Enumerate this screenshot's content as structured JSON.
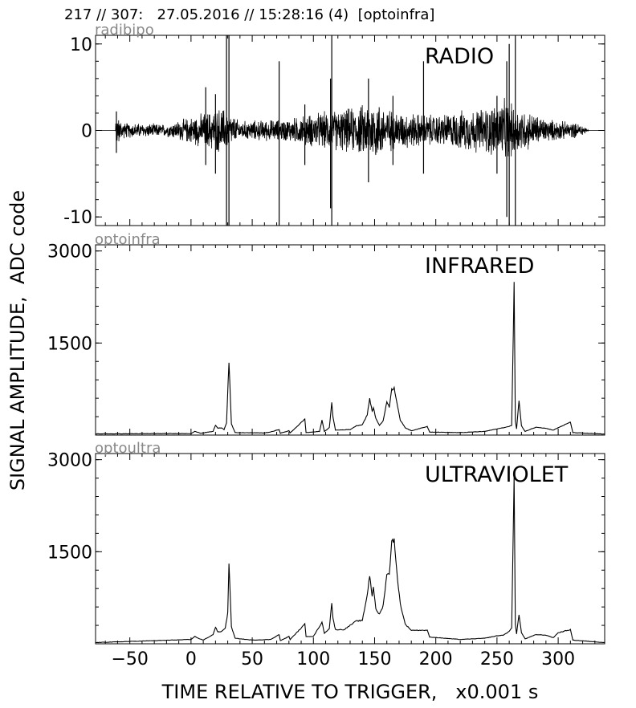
{
  "header": "217 // 307:   27.05.2016 // 15:28:16 (4)  [optoinfra]",
  "ylabel": "SIGNAL AMPLITUDE,  ADC code",
  "xlabel": "TIME RELATIVE TO TRIGGER,   x0.001 s",
  "chart_data": [
    {
      "type": "line",
      "channel": "radibipo",
      "title": "RADIO",
      "xlim": [
        -78,
        338
      ],
      "ylim": [
        -11,
        11
      ],
      "yticks": [
        10,
        0,
        -10
      ],
      "ytick_labels": [
        "10",
        "0",
        "-10"
      ],
      "x_ticks_labeled": false,
      "baseline": 0,
      "noise_envelope": [
        {
          "x": -78,
          "amp": 0
        },
        {
          "x": -62,
          "amp": 0
        },
        {
          "x": -61,
          "amp": 2.0
        },
        {
          "x": -55,
          "amp": 1.0
        },
        {
          "x": -20,
          "amp": 0.8
        },
        {
          "x": 15,
          "amp": 2.5
        },
        {
          "x": 25,
          "amp": 3.0
        },
        {
          "x": 40,
          "amp": 1.2
        },
        {
          "x": 80,
          "amp": 1.5
        },
        {
          "x": 100,
          "amp": 2.2
        },
        {
          "x": 135,
          "amp": 3.0
        },
        {
          "x": 150,
          "amp": 4.0
        },
        {
          "x": 165,
          "amp": 2.5
        },
        {
          "x": 200,
          "amp": 2.0
        },
        {
          "x": 240,
          "amp": 3.0
        },
        {
          "x": 255,
          "amp": 4.0
        },
        {
          "x": 268,
          "amp": 3.0
        },
        {
          "x": 290,
          "amp": 1.5
        },
        {
          "x": 320,
          "amp": 0.8
        },
        {
          "x": 325,
          "amp": 0
        },
        {
          "x": 338,
          "amp": 0
        }
      ],
      "spikes": [
        {
          "x": -61,
          "y": 2.2
        },
        {
          "x": -61,
          "y": -2.6
        },
        {
          "x": 12,
          "y": 5.0
        },
        {
          "x": 12,
          "y": -4.0
        },
        {
          "x": 20,
          "y": 4.2
        },
        {
          "x": 20,
          "y": -5.0
        },
        {
          "x": 29,
          "y": 11
        },
        {
          "x": 29,
          "y": -11
        },
        {
          "x": 31,
          "y": 11
        },
        {
          "x": 31,
          "y": -11
        },
        {
          "x": 72,
          "y": 8.0
        },
        {
          "x": 72,
          "y": -11
        },
        {
          "x": 115,
          "y": 11
        },
        {
          "x": 115,
          "y": -11
        },
        {
          "x": 114,
          "y": 6
        },
        {
          "x": 114,
          "y": -9
        },
        {
          "x": 93,
          "y": 3
        },
        {
          "x": 93,
          "y": -4
        },
        {
          "x": 145,
          "y": 6
        },
        {
          "x": 145,
          "y": -6
        },
        {
          "x": 165,
          "y": 4
        },
        {
          "x": 165,
          "y": -4
        },
        {
          "x": 190,
          "y": 8
        },
        {
          "x": 190,
          "y": -5
        },
        {
          "x": 250,
          "y": 4
        },
        {
          "x": 250,
          "y": -5
        },
        {
          "x": 258,
          "y": 8
        },
        {
          "x": 258,
          "y": -10
        },
        {
          "x": 260,
          "y": 10
        },
        {
          "x": 260,
          "y": -11
        },
        {
          "x": 265,
          "y": 11
        },
        {
          "x": 265,
          "y": -11
        }
      ]
    },
    {
      "type": "line",
      "channel": "optoinfra",
      "title": "INFRARED",
      "xlim": [
        -78,
        338
      ],
      "ylim": [
        0,
        3100
      ],
      "yticks": [
        3000,
        1500
      ],
      "ytick_labels": [
        "3000",
        "1500"
      ],
      "x_ticks_labeled": false,
      "series_points": [
        [
          -78,
          20
        ],
        [
          0,
          25
        ],
        [
          3,
          60
        ],
        [
          8,
          30
        ],
        [
          18,
          60
        ],
        [
          20,
          160
        ],
        [
          22,
          110
        ],
        [
          25,
          120
        ],
        [
          27,
          90
        ],
        [
          29,
          200
        ],
        [
          31,
          1200
        ],
        [
          33,
          180
        ],
        [
          36,
          40
        ],
        [
          60,
          35
        ],
        [
          65,
          50
        ],
        [
          72,
          90
        ],
        [
          73,
          30
        ],
        [
          80,
          70
        ],
        [
          81,
          35
        ],
        [
          93,
          260
        ],
        [
          94,
          40
        ],
        [
          105,
          60
        ],
        [
          107,
          240
        ],
        [
          109,
          60
        ],
        [
          113,
          120
        ],
        [
          115,
          520
        ],
        [
          116,
          300
        ],
        [
          118,
          80
        ],
        [
          130,
          90
        ],
        [
          135,
          150
        ],
        [
          140,
          170
        ],
        [
          144,
          330
        ],
        [
          146,
          600
        ],
        [
          148,
          380
        ],
        [
          149,
          450
        ],
        [
          151,
          270
        ],
        [
          154,
          160
        ],
        [
          157,
          230
        ],
        [
          160,
          550
        ],
        [
          162,
          460
        ],
        [
          164,
          740
        ],
        [
          166,
          770
        ],
        [
          168,
          560
        ],
        [
          171,
          240
        ],
        [
          175,
          120
        ],
        [
          180,
          70
        ],
        [
          193,
          140
        ],
        [
          195,
          50
        ],
        [
          220,
          40
        ],
        [
          240,
          60
        ],
        [
          250,
          100
        ],
        [
          255,
          120
        ],
        [
          260,
          140
        ],
        [
          262,
          160
        ],
        [
          264,
          2450
        ],
        [
          265,
          230
        ],
        [
          266,
          100
        ],
        [
          268,
          560
        ],
        [
          270,
          150
        ],
        [
          273,
          60
        ],
        [
          282,
          130
        ],
        [
          290,
          110
        ],
        [
          296,
          80
        ],
        [
          300,
          120
        ],
        [
          310,
          210
        ],
        [
          312,
          40
        ],
        [
          338,
          15
        ]
      ]
    },
    {
      "type": "line",
      "channel": "optoultra",
      "title": "ULTRAVIOLET",
      "xlim": [
        -78,
        338
      ],
      "ylim": [
        0,
        3100
      ],
      "yticks": [
        3000,
        1500
      ],
      "ytick_labels": [
        "3000",
        "1500"
      ],
      "xticks": [
        -50,
        0,
        50,
        100,
        150,
        200,
        250,
        300
      ],
      "xtick_labels": [
        "−50",
        "0",
        "50",
        "100",
        "150",
        "200",
        "250",
        "300"
      ],
      "x_ticks_labeled": true,
      "series_points": [
        [
          -78,
          20
        ],
        [
          0,
          70
        ],
        [
          3,
          120
        ],
        [
          6,
          90
        ],
        [
          10,
          60
        ],
        [
          18,
          150
        ],
        [
          20,
          270
        ],
        [
          22,
          190
        ],
        [
          25,
          200
        ],
        [
          28,
          260
        ],
        [
          30,
          500
        ],
        [
          31,
          1330
        ],
        [
          33,
          280
        ],
        [
          36,
          90
        ],
        [
          50,
          60
        ],
        [
          65,
          70
        ],
        [
          72,
          150
        ],
        [
          73,
          50
        ],
        [
          80,
          120
        ],
        [
          81,
          70
        ],
        [
          93,
          320
        ],
        [
          94,
          120
        ],
        [
          100,
          120
        ],
        [
          107,
          350
        ],
        [
          109,
          170
        ],
        [
          113,
          250
        ],
        [
          115,
          670
        ],
        [
          116,
          410
        ],
        [
          118,
          230
        ],
        [
          125,
          230
        ],
        [
          130,
          300
        ],
        [
          135,
          370
        ],
        [
          140,
          380
        ],
        [
          144,
          800
        ],
        [
          146,
          1120
        ],
        [
          148,
          780
        ],
        [
          149,
          940
        ],
        [
          151,
          560
        ],
        [
          154,
          480
        ],
        [
          157,
          620
        ],
        [
          160,
          1140
        ],
        [
          162,
          1120
        ],
        [
          164,
          1700
        ],
        [
          166,
          1680
        ],
        [
          168,
          1200
        ],
        [
          171,
          650
        ],
        [
          175,
          320
        ],
        [
          180,
          220
        ],
        [
          193,
          220
        ],
        [
          195,
          110
        ],
        [
          220,
          70
        ],
        [
          240,
          90
        ],
        [
          250,
          130
        ],
        [
          255,
          140
        ],
        [
          260,
          200
        ],
        [
          262,
          260
        ],
        [
          264,
          2750
        ],
        [
          265,
          310
        ],
        [
          266,
          160
        ],
        [
          268,
          480
        ],
        [
          270,
          180
        ],
        [
          273,
          80
        ],
        [
          282,
          150
        ],
        [
          290,
          140
        ],
        [
          296,
          100
        ],
        [
          300,
          180
        ],
        [
          310,
          230
        ],
        [
          312,
          60
        ],
        [
          338,
          20
        ]
      ]
    }
  ]
}
